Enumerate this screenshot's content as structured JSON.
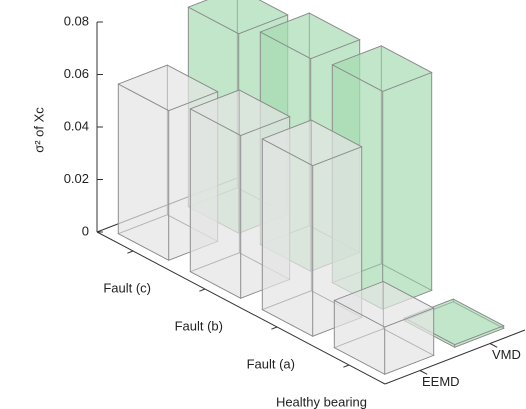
{
  "chart_data": {
    "type": "bar3d",
    "zlabel": "σ² of Xc",
    "categories": [
      "Fault (c)",
      "Fault (b)",
      "Fault (a)",
      "Healthy bearing"
    ],
    "series": [
      {
        "name": "EEMD",
        "color": "#e4e4e4",
        "values": [
          0.057,
          0.062,
          0.065,
          0.018
        ]
      },
      {
        "name": "VMD",
        "color": "#a6dbb2",
        "values": [
          0.076,
          0.081,
          0.083,
          0.001
        ]
      }
    ],
    "zlim": [
      0,
      0.08
    ],
    "zticks": [
      0,
      0.02,
      0.04,
      0.06,
      0.08
    ]
  }
}
